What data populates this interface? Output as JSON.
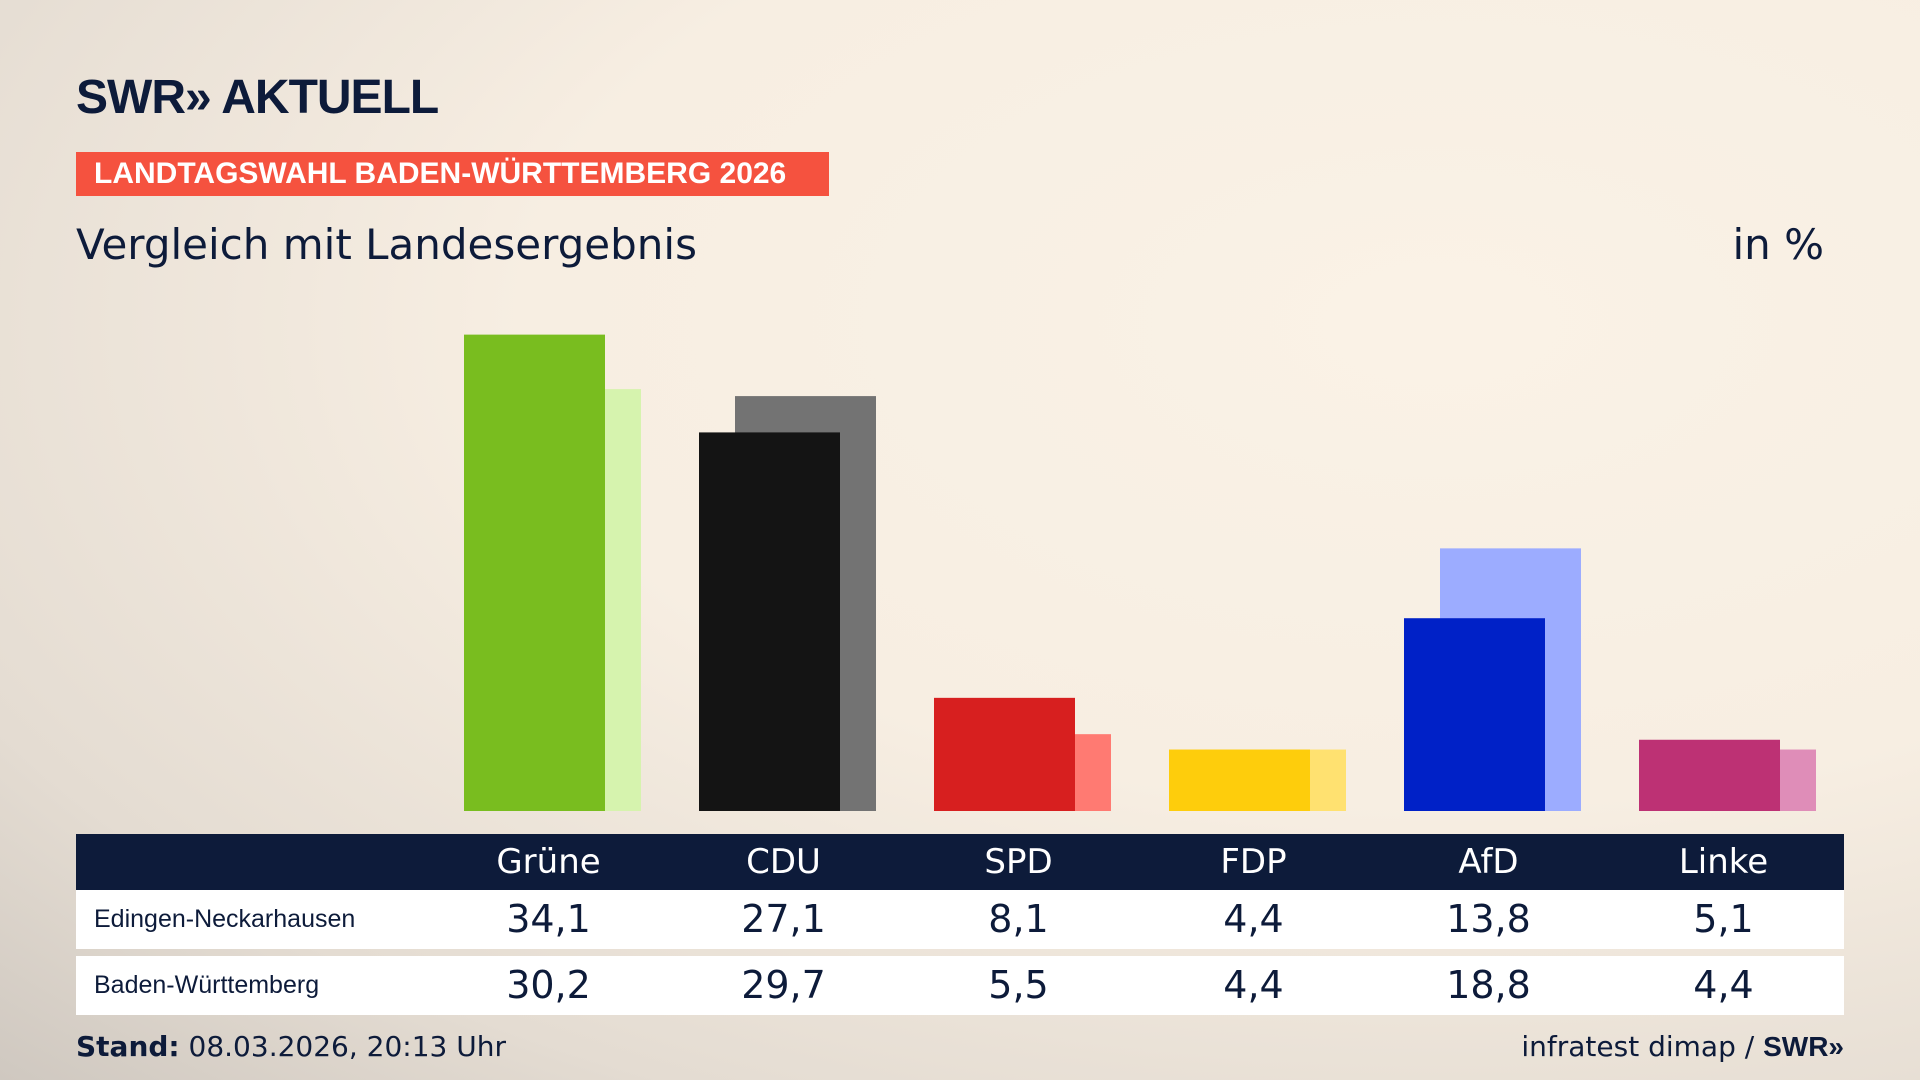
{
  "header": {
    "logo": "SWR» AKTUELL",
    "banner": "LANDTAGSWAHL BADEN-WÜRTTEMBERG 2026",
    "subtitle": "Vergleich mit Landesergebnis",
    "unit": "in %"
  },
  "chart_data": {
    "type": "bar",
    "categories": [
      "Grüne",
      "CDU",
      "SPD",
      "FDP",
      "AfD",
      "Linke"
    ],
    "series": [
      {
        "name": "Edingen-Neckarhausen",
        "values": [
          34.1,
          27.1,
          8.1,
          4.4,
          13.8,
          5.1
        ]
      },
      {
        "name": "Baden-Württemberg",
        "values": [
          30.2,
          29.7,
          5.5,
          4.4,
          18.8,
          4.4
        ]
      }
    ],
    "colors": [
      "#79bd1f",
      "#141414",
      "#d71f1f",
      "#fecd0c",
      "#0021c7",
      "#bd3174"
    ],
    "colors_light": [
      "#d6f3ae",
      "#737373",
      "#ff7a72",
      "#ffe170",
      "#9cacff",
      "#df8db8"
    ],
    "display_values": [
      [
        "34,1",
        "27,1",
        "8,1",
        "4,4",
        "13,8",
        "5,1"
      ],
      [
        "30,2",
        "29,7",
        "5,5",
        "4,4",
        "18,8",
        "4,4"
      ]
    ]
  },
  "footer": {
    "stand_label": "Stand:",
    "stand_value": "08.03.2026, 20:13 Uhr",
    "source": "infratest dimap / ",
    "source_logo": "SWR»"
  }
}
